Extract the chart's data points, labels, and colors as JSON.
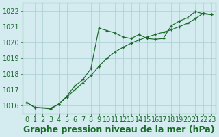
{
  "xlabel": "Graphe pression niveau de la mer (hPa)",
  "bg_color": "#d4ecf0",
  "grid_color": "#aacdd6",
  "line_color": "#1a6b2a",
  "x_ticks": [
    0,
    1,
    2,
    3,
    4,
    5,
    6,
    7,
    8,
    9,
    10,
    11,
    12,
    13,
    14,
    15,
    16,
    17,
    18,
    19,
    20,
    21,
    22,
    23
  ],
  "xlim": [
    -0.5,
    23.5
  ],
  "ylim": [
    1015.5,
    1022.5
  ],
  "yticks": [
    1016,
    1017,
    1018,
    1019,
    1020,
    1021,
    1022
  ],
  "line1_x": [
    0,
    1,
    3,
    4,
    5,
    6,
    7,
    8,
    9,
    10,
    11,
    12,
    13,
    14,
    15,
    16,
    17,
    18,
    19,
    20,
    21,
    22,
    23
  ],
  "line1_y": [
    1016.2,
    1015.9,
    1015.8,
    1016.1,
    1016.6,
    1017.25,
    1017.65,
    1018.35,
    1020.9,
    1020.75,
    1020.6,
    1020.35,
    1020.25,
    1020.5,
    1020.25,
    1020.2,
    1020.25,
    1021.05,
    1021.35,
    1021.55,
    1021.95,
    1021.8,
    1021.75
  ],
  "line2_x": [
    0,
    1,
    3,
    4,
    5,
    6,
    7,
    8,
    9,
    10,
    11,
    12,
    13,
    14,
    15,
    16,
    17,
    18,
    19,
    20,
    21,
    22,
    23
  ],
  "line2_y": [
    1016.2,
    1015.9,
    1015.85,
    1016.1,
    1016.55,
    1017.0,
    1017.45,
    1017.9,
    1018.5,
    1019.0,
    1019.4,
    1019.7,
    1019.95,
    1020.15,
    1020.35,
    1020.5,
    1020.65,
    1020.8,
    1021.0,
    1021.2,
    1021.5,
    1021.85,
    1021.75
  ],
  "xlabel_fontsize": 9,
  "tick_fontsize": 7
}
